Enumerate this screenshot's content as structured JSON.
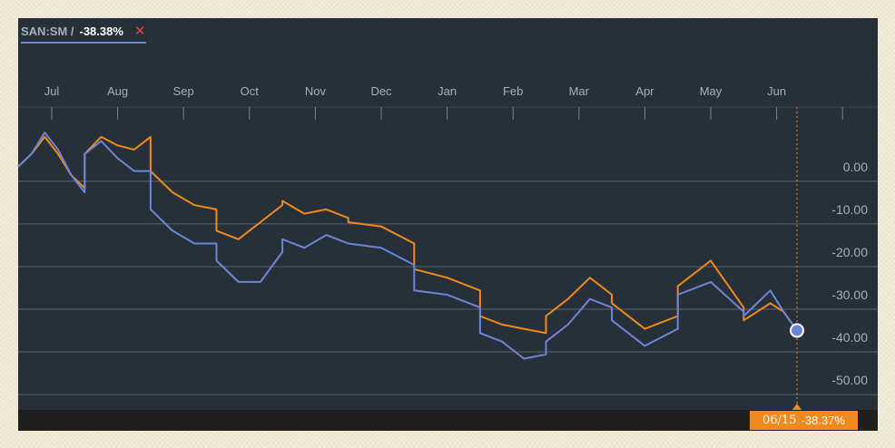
{
  "legend": {
    "symbol": "SAN:SM /",
    "value": "-38.38%",
    "close_glyph": "✕"
  },
  "tooltip": {
    "date": "06/15",
    "value": "-38.37%"
  },
  "colors": {
    "primary_series": "#6b86d8",
    "comparison_series": "#f08a1c",
    "background": "#272f39"
  },
  "chart_data": {
    "type": "line",
    "title": "",
    "xlabel": "",
    "ylabel": "",
    "x_ticks": [
      "Jul",
      "Aug",
      "Sep",
      "Oct",
      "Nov",
      "Dec",
      "Jan",
      "Feb",
      "Mar",
      "Apr",
      "May",
      "Jun"
    ],
    "y_ticks": [
      "0.00",
      "-10.00",
      "-20.00",
      "-30.00",
      "-40.00",
      "-50.00"
    ],
    "ylim": [
      -57,
      14
    ],
    "grid": true,
    "y_axis_side": "right",
    "series": [
      {
        "name": "SAN:SM",
        "color": "#6b86d8",
        "points": [
          [
            "Jul",
            0
          ],
          [
            "Jul",
            3
          ],
          [
            "Jul",
            8
          ],
          [
            "Jul",
            4
          ],
          [
            "Jul",
            -2
          ],
          [
            "Jul",
            -6
          ],
          [
            "Aug",
            3
          ],
          [
            "Aug",
            6
          ],
          [
            "Aug",
            2
          ],
          [
            "Aug",
            -1
          ],
          [
            "Aug",
            -1
          ],
          [
            "Sep",
            -10
          ],
          [
            "Sep",
            -15
          ],
          [
            "Sep",
            -18
          ],
          [
            "Sep",
            -18
          ],
          [
            "Oct",
            -22
          ],
          [
            "Oct",
            -27
          ],
          [
            "Oct",
            -27
          ],
          [
            "Oct",
            -20
          ],
          [
            "Nov",
            -17
          ],
          [
            "Nov",
            -19
          ],
          [
            "Nov",
            -16
          ],
          [
            "Nov",
            -18
          ],
          [
            "Dec",
            -18
          ],
          [
            "Dec",
            -19
          ],
          [
            "Dec",
            -23
          ],
          [
            "Jan",
            -29
          ],
          [
            "Jan",
            -30
          ],
          [
            "Jan",
            -33
          ],
          [
            "Feb",
            -39
          ],
          [
            "Feb",
            -41
          ],
          [
            "Feb",
            -45
          ],
          [
            "Feb",
            -44
          ],
          [
            "Mar",
            -41
          ],
          [
            "Mar",
            -37
          ],
          [
            "Mar",
            -31
          ],
          [
            "Mar",
            -33
          ],
          [
            "Apr",
            -36
          ],
          [
            "Apr",
            -42
          ],
          [
            "Apr",
            -38
          ],
          [
            "May",
            -30
          ],
          [
            "May",
            -27
          ],
          [
            "May",
            -34
          ],
          [
            "Jun",
            -35
          ],
          [
            "Jun",
            -32
          ],
          [
            "Jun",
            -29
          ],
          [
            "Jun",
            -34
          ],
          [
            "Jun",
            -38.38
          ]
        ]
      },
      {
        "name": "",
        "color": "#f08a1c",
        "points": [
          [
            "Jul",
            0
          ],
          [
            "Jul",
            3
          ],
          [
            "Jul",
            7
          ],
          [
            "Jul",
            3
          ],
          [
            "Jul",
            -2
          ],
          [
            "Jul",
            -5
          ],
          [
            "Aug",
            3
          ],
          [
            "Aug",
            7
          ],
          [
            "Aug",
            5
          ],
          [
            "Aug",
            4
          ],
          [
            "Aug",
            7
          ],
          [
            "Sep",
            -1
          ],
          [
            "Sep",
            -6
          ],
          [
            "Sep",
            -9
          ],
          [
            "Sep",
            -10
          ],
          [
            "Oct",
            -15
          ],
          [
            "Oct",
            -17
          ],
          [
            "Oct",
            -13
          ],
          [
            "Oct",
            -9
          ],
          [
            "Nov",
            -8
          ],
          [
            "Nov",
            -11
          ],
          [
            "Nov",
            -10
          ],
          [
            "Nov",
            -12
          ],
          [
            "Dec",
            -13
          ],
          [
            "Dec",
            -14
          ],
          [
            "Dec",
            -18
          ],
          [
            "Jan",
            -24
          ],
          [
            "Jan",
            -26
          ],
          [
            "Jan",
            -29
          ],
          [
            "Feb",
            -35
          ],
          [
            "Feb",
            -37
          ],
          [
            "Feb",
            -38
          ],
          [
            "Feb",
            -39
          ],
          [
            "Mar",
            -35
          ],
          [
            "Mar",
            -31
          ],
          [
            "Mar",
            -26
          ],
          [
            "Mar",
            -30
          ],
          [
            "Apr",
            -32
          ],
          [
            "Apr",
            -38
          ],
          [
            "Apr",
            -35
          ],
          [
            "May",
            -28
          ],
          [
            "May",
            -22
          ],
          [
            "May",
            -33
          ],
          [
            "Jun",
            -36
          ],
          [
            "Jun",
            -34
          ],
          [
            "Jun",
            -32
          ],
          [
            "Jun",
            -34
          ],
          [
            "Jun",
            -38.37
          ]
        ]
      }
    ]
  }
}
